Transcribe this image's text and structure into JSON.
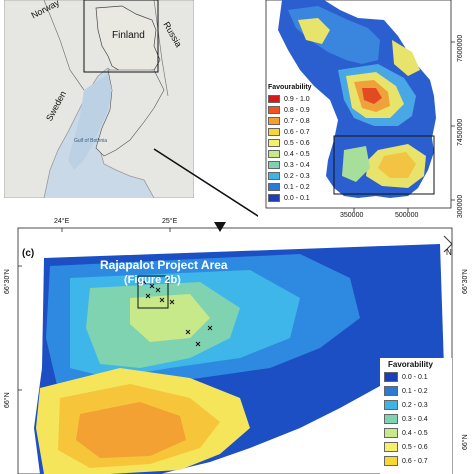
{
  "panel_a": {
    "labels": {
      "norway": "Norway",
      "finland": "Finland",
      "russia": "Russia",
      "sweden": "Sweden",
      "gulf": "Gulf of Bothnia"
    }
  },
  "panel_b": {
    "legend_title": "Favourability",
    "legend": [
      {
        "label": "0.9 - 1.0",
        "color": "#d7191c"
      },
      {
        "label": "0.8 - 0.9",
        "color": "#f4531f"
      },
      {
        "label": "0.7 - 0.8",
        "color": "#f7a030"
      },
      {
        "label": "0.6 - 0.7",
        "color": "#f8d633"
      },
      {
        "label": "0.5 - 0.6",
        "color": "#f4f06a"
      },
      {
        "label": "0.4 - 0.5",
        "color": "#c8e98a"
      },
      {
        "label": "0.3 - 0.4",
        "color": "#7fd3b0"
      },
      {
        "label": "0.2 - 0.3",
        "color": "#3fb3e3"
      },
      {
        "label": "0.1 - 0.2",
        "color": "#2b7ad6"
      },
      {
        "label": "0.0 - 0.1",
        "color": "#1a3fb8"
      }
    ],
    "y_ticks": [
      "7600000",
      "7450000",
      "7300000"
    ],
    "x_ticks": [
      "350000",
      "500000"
    ]
  },
  "panel_c": {
    "panel_letter": "(c)",
    "project_title_1": "Rajapalot Project Area",
    "project_title_2": "(Figure 2b)",
    "x_ticks": [
      "24°E",
      "25°E"
    ],
    "y_ticks": [
      "66°30'N",
      "66°N"
    ],
    "y_ticks_right": [
      "66°30'N",
      "66°N"
    ],
    "north_label": "N",
    "legend_title": "Favorability",
    "legend": [
      {
        "label": "0.0 - 0.1",
        "color": "#1a3fb8"
      },
      {
        "label": "0.1 - 0.2",
        "color": "#2b7ad6"
      },
      {
        "label": "0.2 - 0.3",
        "color": "#3fb3e3"
      },
      {
        "label": "0.3 - 0.4",
        "color": "#7fd3b0"
      },
      {
        "label": "0.4 - 0.5",
        "color": "#c8e98a"
      },
      {
        "label": "0.5 - 0.6",
        "color": "#f4f06a"
      },
      {
        "label": "0.6 - 0.7",
        "color": "#f8d633"
      }
    ]
  }
}
